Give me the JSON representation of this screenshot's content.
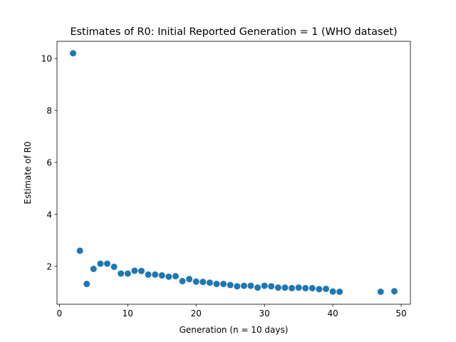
{
  "chart_data": {
    "type": "scatter",
    "title": "Estimates of R0: Initial Reported Generation = 1 (WHO dataset)",
    "xlabel": "Generation (n = 10 days)",
    "ylabel": "Estimate of R0",
    "xlim": [
      -0.35,
      51.35
    ],
    "ylim": [
      0.54,
      10.66
    ],
    "xticks": [
      0,
      10,
      20,
      30,
      40,
      50
    ],
    "yticks": [
      2,
      4,
      6,
      8,
      10
    ],
    "grid": false,
    "legend": "none",
    "marker_color": "#1f77b4",
    "series": [
      {
        "x": [
          2,
          3,
          4,
          5,
          6,
          7,
          8,
          9,
          10,
          11,
          12,
          13,
          14,
          15,
          16,
          17,
          18,
          19,
          20,
          21,
          22,
          23,
          24,
          25,
          26,
          27,
          28,
          29,
          30,
          31,
          32,
          33,
          34,
          35,
          36,
          37,
          38,
          39,
          40,
          41,
          47,
          49
        ],
        "y": [
          10.2,
          2.6,
          1.32,
          1.9,
          2.1,
          2.1,
          1.98,
          1.72,
          1.72,
          1.83,
          1.82,
          1.68,
          1.68,
          1.65,
          1.6,
          1.62,
          1.43,
          1.51,
          1.41,
          1.4,
          1.37,
          1.32,
          1.32,
          1.28,
          1.23,
          1.25,
          1.25,
          1.18,
          1.25,
          1.23,
          1.18,
          1.18,
          1.16,
          1.18,
          1.16,
          1.16,
          1.12,
          1.13,
          1.03,
          1.02,
          1.02,
          1.04
        ]
      }
    ]
  }
}
